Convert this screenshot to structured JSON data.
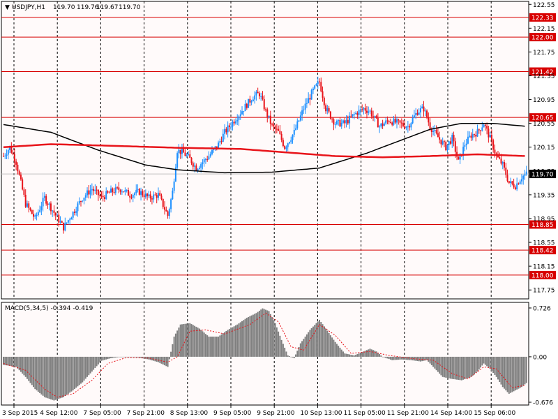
{
  "chart_data": [
    {
      "type": "candlestick",
      "header": {
        "symbol": "USDJPY,H1",
        "open": "119.70",
        "high": "119.76",
        "low": "119.67",
        "close": "119.70"
      },
      "y_ticks": [
        "122.55",
        "122.15",
        "121.75",
        "121.35",
        "120.95",
        "120.55",
        "120.15",
        "119.75",
        "119.35",
        "118.95",
        "118.55",
        "118.15",
        "117.75"
      ],
      "ylim": [
        117.6,
        122.6
      ],
      "x_labels": [
        "3 Sep 2015",
        "4 Sep 12:00",
        "7 Sep 05:00",
        "7 Sep 21:00",
        "8 Sep 13:00",
        "9 Sep 05:00",
        "9 Sep 21:00",
        "10 Sep 13:00",
        "11 Sep 05:00",
        "11 Sep 21:00",
        "14 Sep 14:00",
        "15 Sep 06:00"
      ],
      "price_levels": [
        {
          "value": 122.33,
          "label": "122.33"
        },
        {
          "value": 122.0,
          "label": "122.00"
        },
        {
          "value": 121.42,
          "label": "121.42"
        },
        {
          "value": 120.65,
          "label": "120.65"
        },
        {
          "value": 118.85,
          "label": "118.85"
        },
        {
          "value": 118.42,
          "label": "118.42"
        },
        {
          "value": 118.0,
          "label": "118.00"
        }
      ],
      "current_price": {
        "value": 119.7,
        "label": "119.70"
      },
      "price_path": [
        [
          0,
          120.0
        ],
        [
          4,
          120.15
        ],
        [
          8,
          119.9
        ],
        [
          14,
          119.2
        ],
        [
          20,
          118.95
        ],
        [
          26,
          119.3
        ],
        [
          32,
          119.05
        ],
        [
          38,
          118.8
        ],
        [
          44,
          119.05
        ],
        [
          50,
          119.3
        ],
        [
          56,
          119.45
        ],
        [
          62,
          119.3
        ],
        [
          68,
          119.4
        ],
        [
          74,
          119.45
        ],
        [
          80,
          119.35
        ],
        [
          86,
          119.4
        ],
        [
          92,
          119.3
        ],
        [
          98,
          119.35
        ],
        [
          104,
          119.0
        ],
        [
          107,
          119.4
        ],
        [
          110,
          120.1
        ],
        [
          114,
          120.05
        ],
        [
          118,
          119.95
        ],
        [
          122,
          119.8
        ],
        [
          126,
          119.9
        ],
        [
          130,
          120.0
        ],
        [
          136,
          120.2
        ],
        [
          140,
          120.4
        ],
        [
          146,
          120.6
        ],
        [
          152,
          120.8
        ],
        [
          158,
          121.0
        ],
        [
          162,
          121.05
        ],
        [
          166,
          120.75
        ],
        [
          170,
          120.5
        ],
        [
          174,
          120.4
        ],
        [
          178,
          120.15
        ],
        [
          184,
          120.4
        ],
        [
          190,
          120.8
        ],
        [
          196,
          121.1
        ],
        [
          200,
          121.25
        ],
        [
          204,
          120.8
        ],
        [
          210,
          120.55
        ],
        [
          216,
          120.55
        ],
        [
          222,
          120.7
        ],
        [
          228,
          120.8
        ],
        [
          232,
          120.75
        ],
        [
          238,
          120.5
        ],
        [
          244,
          120.6
        ],
        [
          250,
          120.55
        ],
        [
          256,
          120.5
        ],
        [
          262,
          120.75
        ],
        [
          266,
          120.8
        ],
        [
          270,
          120.5
        ],
        [
          274,
          120.35
        ],
        [
          280,
          120.15
        ],
        [
          284,
          120.3
        ],
        [
          288,
          119.9
        ],
        [
          292,
          120.2
        ],
        [
          296,
          120.35
        ],
        [
          300,
          120.4
        ],
        [
          304,
          120.55
        ],
        [
          308,
          120.3
        ],
        [
          312,
          120.0
        ],
        [
          316,
          119.85
        ],
        [
          320,
          119.55
        ],
        [
          324,
          119.5
        ],
        [
          328,
          119.65
        ],
        [
          331,
          119.7
        ]
      ],
      "candle_count": 332,
      "ma_slow": [
        [
          0,
          120.53
        ],
        [
          30,
          120.4
        ],
        [
          60,
          120.1
        ],
        [
          90,
          119.85
        ],
        [
          110,
          119.77
        ],
        [
          140,
          119.72
        ],
        [
          170,
          119.73
        ],
        [
          200,
          119.8
        ],
        [
          230,
          120.05
        ],
        [
          250,
          120.25
        ],
        [
          270,
          120.45
        ],
        [
          290,
          120.55
        ],
        [
          310,
          120.55
        ],
        [
          331,
          120.5
        ]
      ],
      "ma_red": [
        [
          0,
          120.15
        ],
        [
          30,
          120.2
        ],
        [
          60,
          120.18
        ],
        [
          110,
          120.14
        ],
        [
          150,
          120.12
        ],
        [
          180,
          120.06
        ],
        [
          210,
          120.0
        ],
        [
          240,
          119.98
        ],
        [
          270,
          120.0
        ],
        [
          300,
          120.03
        ],
        [
          331,
          120.0
        ]
      ],
      "colors": {
        "bull": "#1e90ff",
        "bear": "#e8141a",
        "level": "#d80000",
        "ma_slow": "#000000",
        "ma_red": "#e8141a",
        "current": "#c0c0c0"
      }
    },
    {
      "type": "bar",
      "title": "MACD(5,34,5) -0.394 -0.419",
      "ylim": [
        -0.676,
        0.726
      ],
      "y_ticks": [
        "0.726",
        "0.00",
        "-0.676"
      ],
      "histogram": [
        [
          0,
          -0.12
        ],
        [
          8,
          -0.15
        ],
        [
          14,
          -0.3
        ],
        [
          20,
          -0.48
        ],
        [
          26,
          -0.6
        ],
        [
          32,
          -0.65
        ],
        [
          38,
          -0.6
        ],
        [
          44,
          -0.5
        ],
        [
          50,
          -0.38
        ],
        [
          56,
          -0.22
        ],
        [
          62,
          -0.06
        ],
        [
          68,
          -0.02
        ],
        [
          74,
          0.0
        ],
        [
          80,
          0.0
        ],
        [
          86,
          -0.01
        ],
        [
          92,
          -0.04
        ],
        [
          98,
          -0.08
        ],
        [
          104,
          -0.15
        ],
        [
          108,
          0.3
        ],
        [
          112,
          0.48
        ],
        [
          118,
          0.5
        ],
        [
          124,
          0.42
        ],
        [
          130,
          0.3
        ],
        [
          136,
          0.3
        ],
        [
          142,
          0.4
        ],
        [
          148,
          0.48
        ],
        [
          154,
          0.58
        ],
        [
          160,
          0.65
        ],
        [
          164,
          0.72
        ],
        [
          168,
          0.68
        ],
        [
          172,
          0.5
        ],
        [
          176,
          0.25
        ],
        [
          180,
          0.02
        ],
        [
          184,
          -0.02
        ],
        [
          188,
          0.2
        ],
        [
          194,
          0.4
        ],
        [
          200,
          0.55
        ],
        [
          204,
          0.42
        ],
        [
          210,
          0.22
        ],
        [
          216,
          0.05
        ],
        [
          222,
          0.02
        ],
        [
          228,
          0.08
        ],
        [
          232,
          0.12
        ],
        [
          236,
          0.08
        ],
        [
          240,
          0.0
        ],
        [
          246,
          -0.05
        ],
        [
          252,
          -0.04
        ],
        [
          258,
          -0.05
        ],
        [
          264,
          -0.07
        ],
        [
          268,
          -0.05
        ],
        [
          272,
          -0.15
        ],
        [
          278,
          -0.3
        ],
        [
          284,
          -0.33
        ],
        [
          290,
          -0.35
        ],
        [
          296,
          -0.3
        ],
        [
          300,
          -0.22
        ],
        [
          304,
          -0.1
        ],
        [
          308,
          -0.18
        ],
        [
          312,
          -0.3
        ],
        [
          316,
          -0.45
        ],
        [
          320,
          -0.55
        ],
        [
          324,
          -0.5
        ],
        [
          328,
          -0.45
        ],
        [
          331,
          -0.39
        ]
      ],
      "signal": [
        [
          0,
          -0.1
        ],
        [
          14,
          -0.2
        ],
        [
          26,
          -0.48
        ],
        [
          34,
          -0.6
        ],
        [
          44,
          -0.55
        ],
        [
          56,
          -0.35
        ],
        [
          66,
          -0.1
        ],
        [
          78,
          -0.01
        ],
        [
          92,
          -0.02
        ],
        [
          104,
          -0.08
        ],
        [
          110,
          0.0
        ],
        [
          118,
          0.38
        ],
        [
          128,
          0.4
        ],
        [
          140,
          0.34
        ],
        [
          156,
          0.48
        ],
        [
          166,
          0.65
        ],
        [
          174,
          0.52
        ],
        [
          182,
          0.15
        ],
        [
          190,
          0.1
        ],
        [
          200,
          0.48
        ],
        [
          210,
          0.32
        ],
        [
          220,
          0.05
        ],
        [
          232,
          0.08
        ],
        [
          244,
          0.02
        ],
        [
          260,
          -0.03
        ],
        [
          272,
          -0.05
        ],
        [
          284,
          -0.25
        ],
        [
          294,
          -0.33
        ],
        [
          304,
          -0.15
        ],
        [
          312,
          -0.18
        ],
        [
          322,
          -0.46
        ],
        [
          331,
          -0.42
        ]
      ],
      "colors": {
        "bar": "#808080",
        "signal": "#e8141a"
      }
    }
  ]
}
